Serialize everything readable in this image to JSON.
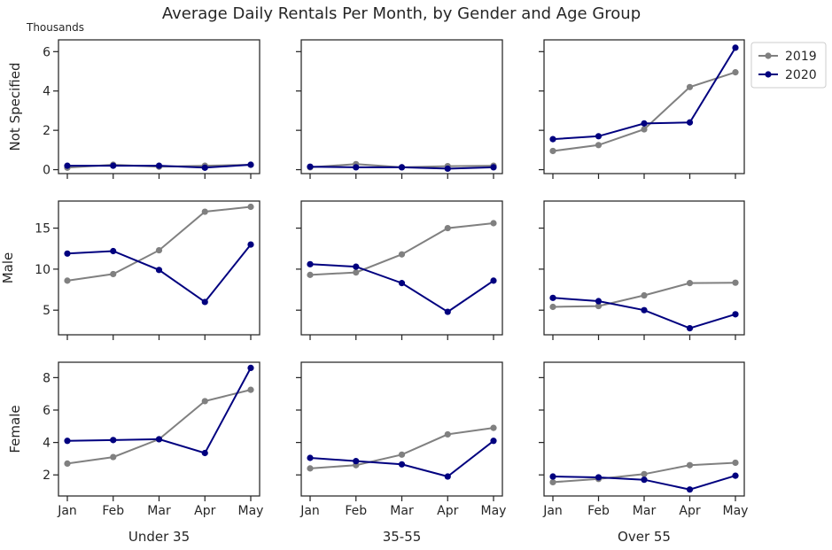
{
  "chart_data": {
    "type": "line",
    "title": "Average Daily Rentals Per Month, by Gender and Age Group",
    "units_label": "Thousands",
    "categories": [
      "Jan",
      "Feb",
      "Mar",
      "Apr",
      "May"
    ],
    "columns": [
      "Under 35",
      "35-55",
      "Over 55"
    ],
    "rows": [
      {
        "label": "Not Specified",
        "ylim": [
          -0.2,
          6.6
        ],
        "yticks": [
          "0",
          "2",
          "4",
          "6"
        ],
        "ytick_values": [
          0,
          2,
          4,
          6
        ]
      },
      {
        "label": "Male",
        "ylim": [
          2,
          18.3
        ],
        "yticks": [
          "5",
          "10",
          "15"
        ],
        "ytick_values": [
          5,
          10,
          15
        ]
      },
      {
        "label": "Female",
        "ylim": [
          0.7,
          8.95
        ],
        "yticks": [
          "2",
          "4",
          "6",
          "8"
        ],
        "ytick_values": [
          2,
          4,
          6,
          8
        ]
      }
    ],
    "legend": {
      "placement": "right of top-right panel",
      "entries": [
        {
          "name": "2019",
          "color": "#808080"
        },
        {
          "name": "2020",
          "color": "#00007f"
        }
      ]
    },
    "panels": [
      {
        "row": "Not Specified",
        "column": "Under 35",
        "series": [
          {
            "name": "2019",
            "values": [
              0.1,
              0.25,
              0.15,
              0.2,
              0.25
            ]
          },
          {
            "name": "2020",
            "values": [
              0.2,
              0.2,
              0.2,
              0.1,
              0.25
            ]
          }
        ]
      },
      {
        "row": "Not Specified",
        "column": "35-55",
        "series": [
          {
            "name": "2019",
            "values": [
              0.12,
              0.28,
              0.12,
              0.18,
              0.2
            ]
          },
          {
            "name": "2020",
            "values": [
              0.15,
              0.12,
              0.12,
              0.05,
              0.12
            ]
          }
        ]
      },
      {
        "row": "Not Specified",
        "column": "Over 55",
        "series": [
          {
            "name": "2019",
            "values": [
              0.95,
              1.25,
              2.05,
              4.2,
              4.95
            ]
          },
          {
            "name": "2020",
            "values": [
              1.55,
              1.7,
              2.35,
              2.4,
              6.2
            ]
          }
        ]
      },
      {
        "row": "Male",
        "column": "Under 35",
        "series": [
          {
            "name": "2019",
            "values": [
              8.6,
              9.4,
              12.3,
              17.0,
              17.6
            ]
          },
          {
            "name": "2020",
            "values": [
              11.9,
              12.2,
              9.9,
              6.0,
              13.0
            ]
          }
        ]
      },
      {
        "row": "Male",
        "column": "35-55",
        "series": [
          {
            "name": "2019",
            "values": [
              9.3,
              9.6,
              11.8,
              15.0,
              15.6
            ]
          },
          {
            "name": "2020",
            "values": [
              10.6,
              10.3,
              8.3,
              4.8,
              8.6
            ]
          }
        ]
      },
      {
        "row": "Male",
        "column": "Over 55",
        "series": [
          {
            "name": "2019",
            "values": [
              5.4,
              5.5,
              6.8,
              8.3,
              8.35
            ]
          },
          {
            "name": "2020",
            "values": [
              6.5,
              6.1,
              5.0,
              2.8,
              4.5
            ]
          }
        ]
      },
      {
        "row": "Female",
        "column": "Under 35",
        "series": [
          {
            "name": "2019",
            "values": [
              2.7,
              3.1,
              4.2,
              6.55,
              7.25
            ]
          },
          {
            "name": "2020",
            "values": [
              4.1,
              4.15,
              4.2,
              3.35,
              8.6
            ]
          }
        ]
      },
      {
        "row": "Female",
        "column": "35-55",
        "series": [
          {
            "name": "2019",
            "values": [
              2.4,
              2.6,
              3.25,
              4.5,
              4.9
            ]
          },
          {
            "name": "2020",
            "values": [
              3.05,
              2.85,
              2.65,
              1.9,
              4.1
            ]
          }
        ]
      },
      {
        "row": "Female",
        "column": "Over 55",
        "series": [
          {
            "name": "2019",
            "values": [
              1.55,
              1.75,
              2.05,
              2.6,
              2.75
            ]
          },
          {
            "name": "2020",
            "values": [
              1.9,
              1.85,
              1.7,
              1.1,
              1.95
            ]
          }
        ]
      }
    ]
  }
}
